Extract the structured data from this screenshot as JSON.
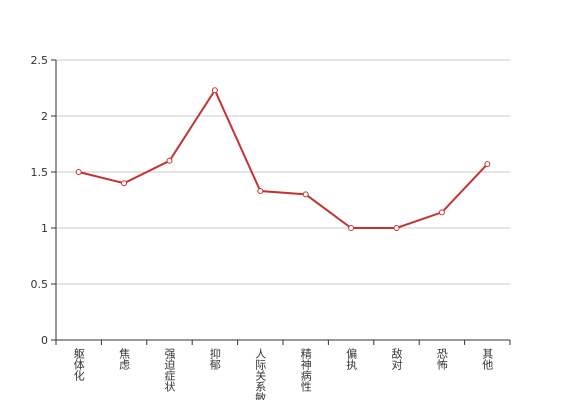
{
  "chart_data": {
    "type": "line",
    "categories": [
      "躯体化",
      "焦虑",
      "强迫症状",
      "抑郁",
      "人际关系敏感",
      "精神病性",
      "偏执",
      "敌对",
      "恐怖",
      "其他"
    ],
    "series": [
      {
        "name": null,
        "color": "#c23531",
        "values": [
          1.5,
          1.4,
          1.6,
          2.23,
          1.33,
          1.3,
          1.0,
          1.0,
          1.14,
          1.57
        ]
      }
    ],
    "ylim": [
      0,
      2.5
    ],
    "yticks": [
      0,
      0.5,
      1,
      1.5,
      2,
      2.5
    ],
    "grid": true
  }
}
